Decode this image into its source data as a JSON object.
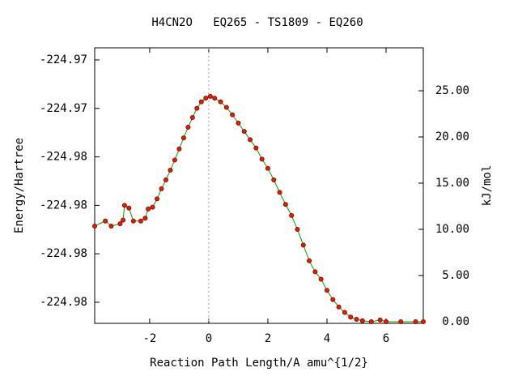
{
  "chart_data": {
    "type": "line",
    "title": "H4CN2O   EQ265 - TS1809 - EQ260",
    "xlabel": "Reaction Path Length/A amu^{1/2}",
    "ylabel": "Energy/Hartree",
    "y2label": "kJ/mol",
    "xlim": [
      -3.86,
      7.26
    ],
    "xticks": [
      -2,
      0,
      2,
      4,
      6
    ],
    "ylim": [
      -224.98087,
      -224.9695
    ],
    "yticks": [
      {
        "value": -224.97,
        "label": "-224.97"
      },
      {
        "value": -224.972,
        "label": "-224.97"
      },
      {
        "value": -224.974,
        "label": "-224.98"
      },
      {
        "value": -224.976,
        "label": "-224.98"
      },
      {
        "value": -224.978,
        "label": "-224.98"
      },
      {
        "value": -224.98,
        "label": "-224.98"
      }
    ],
    "y2lim": [
      -0.18,
      29.65
    ],
    "y2ticks": [
      {
        "value": 0,
        "label": "0.00"
      },
      {
        "value": 5,
        "label": "5.00"
      },
      {
        "value": 10,
        "label": "10.00"
      },
      {
        "value": 15,
        "label": "15.00"
      },
      {
        "value": 20,
        "label": "20.00"
      },
      {
        "value": 25,
        "label": "25.00"
      }
    ],
    "vline_x": 0,
    "x": [
      -3.86,
      -3.5,
      -3.3,
      -3.0,
      -2.9,
      -2.85,
      -2.7,
      -2.55,
      -2.3,
      -2.15,
      -2.05,
      -1.9,
      -1.75,
      -1.6,
      -1.45,
      -1.3,
      -1.15,
      -1.0,
      -0.85,
      -0.7,
      -0.55,
      -0.4,
      -0.25,
      -0.1,
      0.05,
      0.2,
      0.4,
      0.6,
      0.8,
      1.0,
      1.2,
      1.4,
      1.6,
      1.8,
      2.0,
      2.2,
      2.4,
      2.6,
      2.8,
      3.0,
      3.2,
      3.4,
      3.6,
      3.8,
      4.0,
      4.2,
      4.4,
      4.6,
      4.8,
      5.0,
      5.2,
      5.5,
      5.8,
      6.0,
      6.5,
      7.0,
      7.26
    ],
    "series": [
      {
        "axis": "y2",
        "color": "#00a000",
        "marker_color": "#e02000",
        "values": [
          10.35,
          10.9,
          10.35,
          10.6,
          11.0,
          12.6,
          12.3,
          10.9,
          10.9,
          11.2,
          12.2,
          12.4,
          13.3,
          14.4,
          15.35,
          16.4,
          17.5,
          18.7,
          19.9,
          21.05,
          22.1,
          23.1,
          23.8,
          24.2,
          24.4,
          24.2,
          23.8,
          23.2,
          22.4,
          21.5,
          20.6,
          19.7,
          18.8,
          17.6,
          16.6,
          15.35,
          14.0,
          12.7,
          11.5,
          10.0,
          8.3,
          6.6,
          5.4,
          4.6,
          3.4,
          2.4,
          1.6,
          1.0,
          0.5,
          0.26,
          0.1,
          0.0,
          0.18,
          0.0,
          0.0,
          0.0,
          0.0
        ]
      }
    ]
  }
}
